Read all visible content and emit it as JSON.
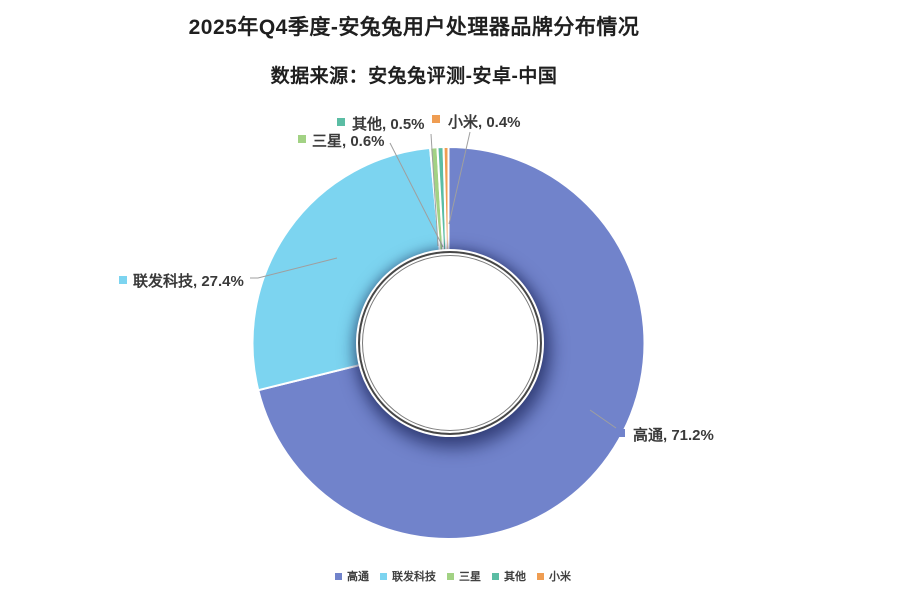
{
  "header": {
    "title": "2025年Q4季度-安兔兔用户处理器品牌分布情况",
    "subtitle": "数据来源：安兔兔评测-安卓-中国"
  },
  "chart_data": {
    "type": "pie",
    "subtype": "donut",
    "title": "2025年Q4季度-安兔兔用户处理器品牌分布情况",
    "subtitle": "数据来源：安兔兔评测-安卓-中国",
    "start_angle_deg": 0,
    "direction": "clockwise",
    "categories": [
      "高通",
      "联发科技",
      "三星",
      "其他",
      "小米"
    ],
    "values": [
      71.2,
      27.4,
      0.6,
      0.5,
      0.4
    ],
    "unit": "%",
    "colors": [
      "#7183CB",
      "#7CD4F0",
      "#A2D284",
      "#5BBDA4",
      "#EF9D52"
    ],
    "data_labels": [
      "高通, 71.2%",
      "联发科技, 27.4%",
      "三星, 0.6%",
      "其他, 0.5%",
      "小米, 0.4%"
    ],
    "legend": {
      "position": "bottom",
      "entries": [
        "高通",
        "联发科技",
        "三星",
        "其他",
        "小米"
      ]
    },
    "background": "#ffffff",
    "leader_line_color": "#9f9f9f",
    "label_text_color": "#3a3a3a"
  }
}
